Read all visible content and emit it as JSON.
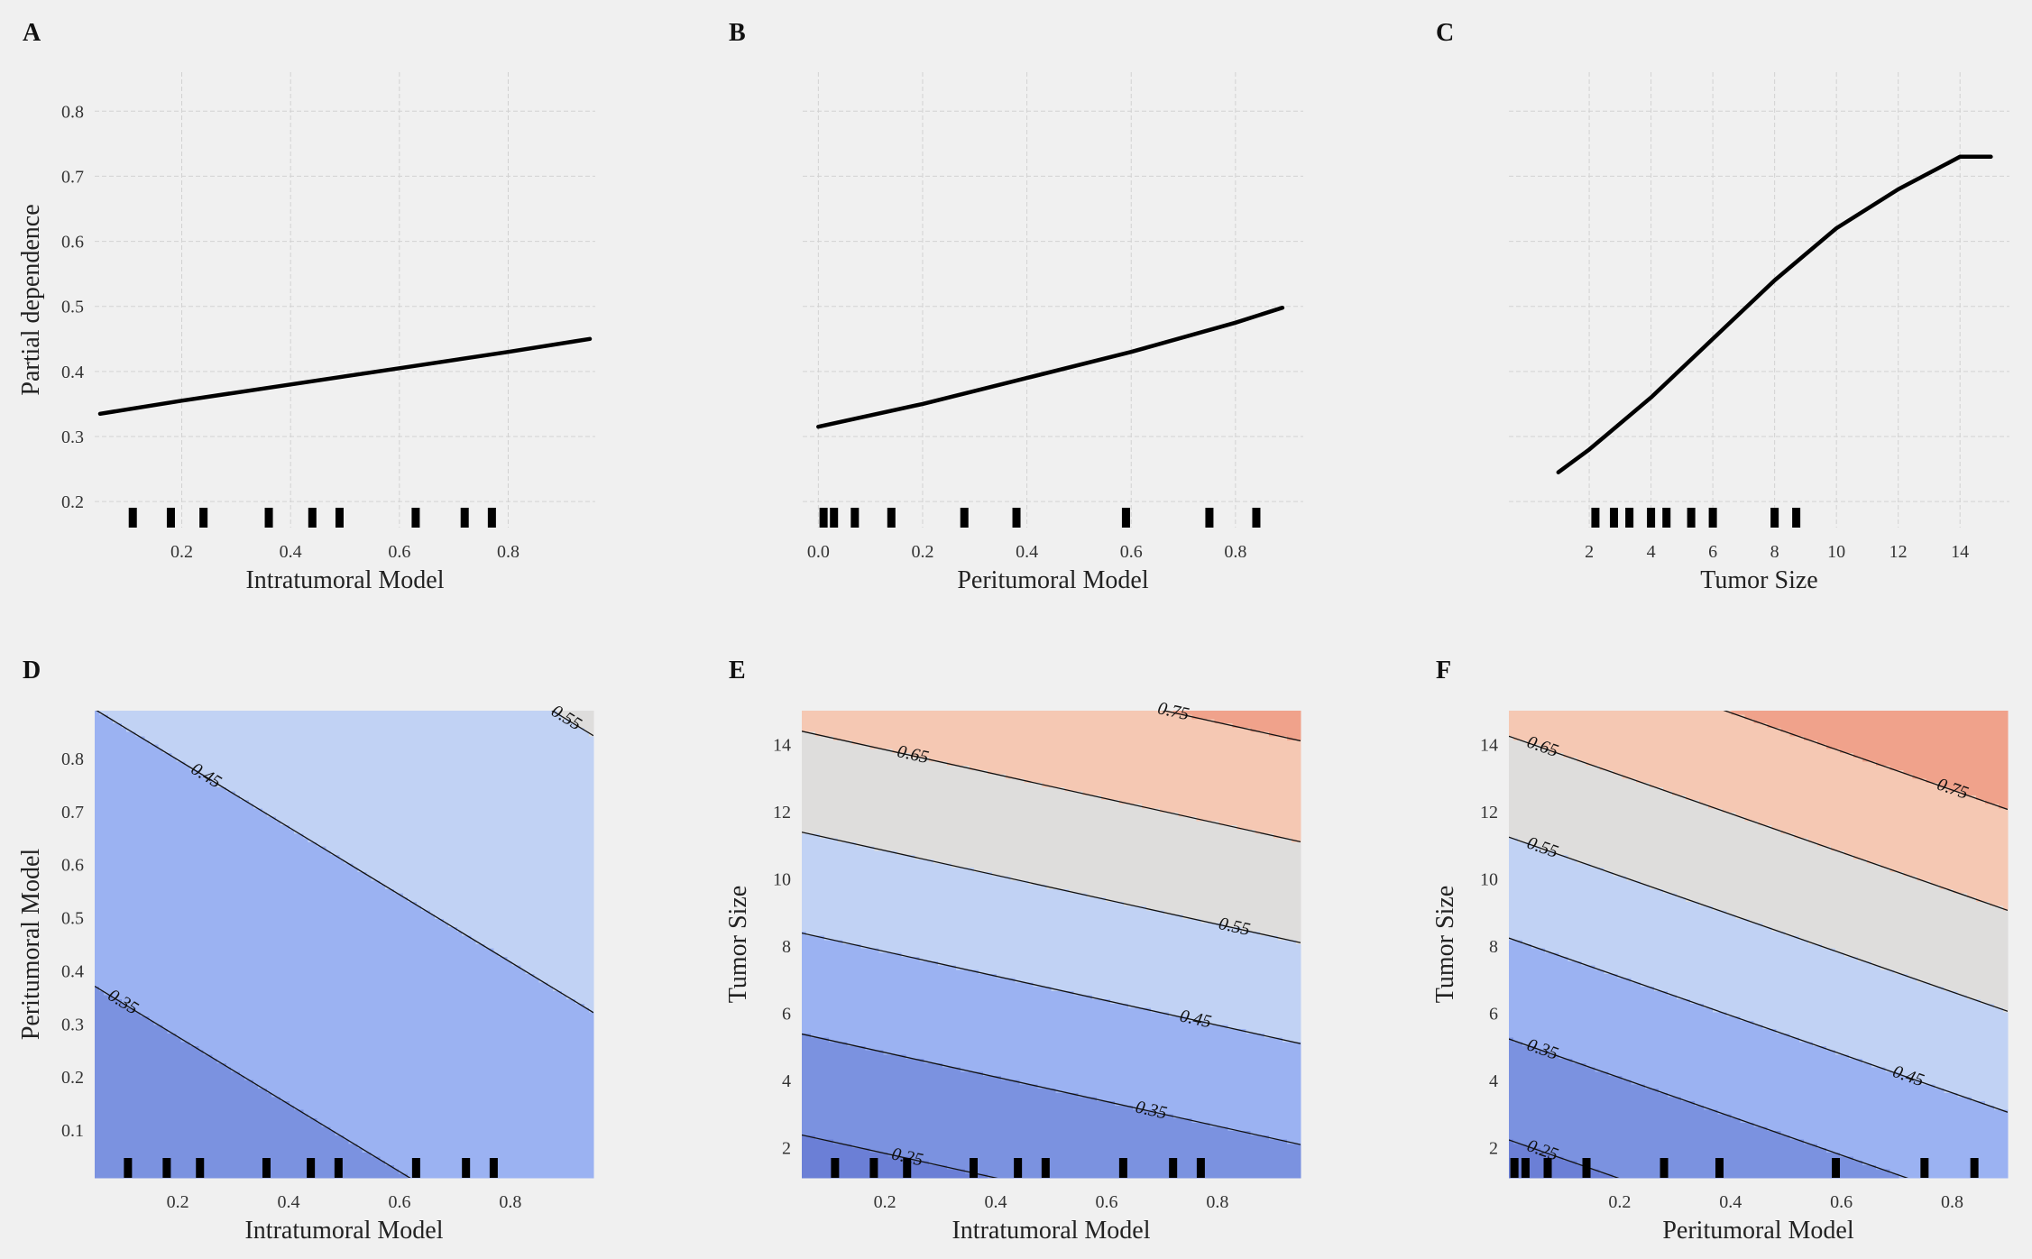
{
  "chart_data": [
    {
      "panel": "A",
      "type": "line",
      "xlabel": "Intratumoral Model",
      "ylabel": "Partial dependence",
      "xlim": [
        0.04,
        0.96
      ],
      "ylim": [
        0.16,
        0.86
      ],
      "xticks": [
        0.2,
        0.4,
        0.6,
        0.8
      ],
      "xtick_labels": [
        "0.2",
        "0.4",
        "0.6",
        "0.8"
      ],
      "yticks": [
        0.2,
        0.3,
        0.4,
        0.5,
        0.6,
        0.7,
        0.8
      ],
      "ytick_labels": [
        "0.2",
        "0.3",
        "0.4",
        "0.5",
        "0.6",
        "0.7",
        "0.8"
      ],
      "x": [
        0.05,
        0.2,
        0.4,
        0.6,
        0.8,
        0.95
      ],
      "y": [
        0.335,
        0.355,
        0.38,
        0.405,
        0.43,
        0.45
      ],
      "rug": [
        0.11,
        0.18,
        0.24,
        0.36,
        0.44,
        0.49,
        0.63,
        0.72,
        0.77
      ],
      "grid": true
    },
    {
      "panel": "B",
      "type": "line",
      "xlabel": "Peritumoral Model",
      "ylabel": "",
      "xlim": [
        -0.03,
        0.93
      ],
      "ylim": [
        0.16,
        0.86
      ],
      "xticks": [
        0.0,
        0.2,
        0.4,
        0.6,
        0.8
      ],
      "xtick_labels": [
        "0.0",
        "0.2",
        "0.4",
        "0.6",
        "0.8"
      ],
      "yticks": [
        0.2,
        0.3,
        0.4,
        0.5,
        0.6,
        0.7,
        0.8
      ],
      "x": [
        0.0,
        0.2,
        0.4,
        0.6,
        0.8,
        0.89
      ],
      "y": [
        0.315,
        0.35,
        0.39,
        0.43,
        0.475,
        0.498
      ],
      "rug": [
        0.01,
        0.03,
        0.07,
        0.14,
        0.28,
        0.38,
        0.59,
        0.75,
        0.84
      ],
      "grid": true
    },
    {
      "panel": "C",
      "type": "line",
      "xlabel": "Tumor Size",
      "ylabel": "",
      "xlim": [
        -0.6,
        15.6
      ],
      "ylim": [
        0.16,
        0.86
      ],
      "xticks": [
        2,
        4,
        6,
        8,
        10,
        12,
        14
      ],
      "xtick_labels": [
        "2",
        "4",
        "6",
        "8",
        "10",
        "12",
        "14"
      ],
      "yticks": [
        0.2,
        0.3,
        0.4,
        0.5,
        0.6,
        0.7,
        0.8
      ],
      "x": [
        1,
        2,
        4,
        6,
        8,
        10,
        12,
        14,
        15
      ],
      "y": [
        0.245,
        0.28,
        0.36,
        0.45,
        0.54,
        0.62,
        0.68,
        0.73,
        0.73
      ],
      "rug": [
        2.2,
        2.8,
        3.3,
        4.0,
        4.5,
        5.3,
        6.0,
        8.0,
        8.7
      ],
      "grid": true
    },
    {
      "panel": "D",
      "type": "contour",
      "xlabel": "Intratumoral Model",
      "ylabel": "Peritumoral Model",
      "xlim": [
        0.05,
        0.95
      ],
      "ylim": [
        0.01,
        0.89
      ],
      "xticks": [
        0.2,
        0.4,
        0.6,
        0.8
      ],
      "xtick_labels": [
        "0.2",
        "0.4",
        "0.6",
        "0.8"
      ],
      "yticks": [
        0.1,
        0.2,
        0.3,
        0.4,
        0.5,
        0.6,
        0.7,
        0.8
      ],
      "ytick_labels": [
        "0.1",
        "0.2",
        "0.3",
        "0.4",
        "0.5",
        "0.6",
        "0.7",
        "0.8"
      ],
      "contour_levels": [
        0.35,
        0.45,
        0.55
      ],
      "contour_labels": [
        "0.35",
        "0.45",
        "0.55"
      ],
      "level_label_positions": [
        [
          0.1,
          0.38
        ],
        [
          0.25,
          0.79
        ],
        [
          0.9,
          0.85
        ]
      ],
      "surface": {
        "z0": 0.2728,
        "ax": 0.1217,
        "ay": 0.1917
      },
      "fill_levels": [
        0.15,
        0.25,
        0.35,
        0.45,
        0.55,
        0.65,
        0.75,
        0.85
      ],
      "fill_colors": [
        "#6b7fd6",
        "#7b92e0",
        "#9bb2f2",
        "#c1d2f4",
        "#dedddc",
        "#f5c8b3",
        "#f0a28b",
        "#d9625d"
      ],
      "rug": [
        0.11,
        0.18,
        0.24,
        0.36,
        0.44,
        0.49,
        0.63,
        0.72,
        0.77
      ]
    },
    {
      "panel": "E",
      "type": "contour",
      "xlabel": "Intratumoral Model",
      "ylabel": "Tumor Size",
      "xlim": [
        0.05,
        0.95
      ],
      "ylim": [
        1.1,
        15.0
      ],
      "xticks": [
        0.2,
        0.4,
        0.6,
        0.8
      ],
      "xtick_labels": [
        "0.2",
        "0.4",
        "0.6",
        "0.8"
      ],
      "yticks": [
        2,
        4,
        6,
        8,
        10,
        12,
        14
      ],
      "ytick_labels": [
        "2",
        "4",
        "6",
        "8",
        "10",
        "12",
        "14"
      ],
      "contour_levels": [
        0.25,
        0.35,
        0.45,
        0.55,
        0.65,
        0.75
      ],
      "contour_labels": [
        "0.25",
        "0.35",
        "0.45",
        "0.55",
        "0.65",
        "0.75"
      ],
      "level_label_positions": [
        [
          0.24,
          2.1
        ],
        [
          0.68,
          3.5
        ],
        [
          0.76,
          5.1
        ],
        [
          0.83,
          7.5
        ],
        [
          0.25,
          13.6
        ],
        [
          0.72,
          14.8
        ]
      ],
      "surface": {
        "z0": 0.1648,
        "ax": 0.1217,
        "ay": 0.0333
      },
      "fill_levels": [
        0.15,
        0.25,
        0.35,
        0.45,
        0.55,
        0.65,
        0.75,
        0.85
      ],
      "fill_colors": [
        "#6b7fd6",
        "#7b92e0",
        "#9bb2f2",
        "#c1d2f4",
        "#dedddc",
        "#f5c8b3",
        "#f0a28b",
        "#d9625d"
      ],
      "rug": [
        0.11,
        0.18,
        0.24,
        0.36,
        0.44,
        0.49,
        0.63,
        0.72,
        0.77
      ]
    },
    {
      "panel": "F",
      "type": "contour",
      "xlabel": "Peritumoral Model",
      "ylabel": "Tumor Size",
      "xlim": [
        0.0,
        0.9
      ],
      "ylim": [
        1.1,
        15.0
      ],
      "xticks": [
        0.2,
        0.4,
        0.6,
        0.8
      ],
      "xtick_labels": [
        "0.2",
        "0.4",
        "0.6",
        "0.8"
      ],
      "yticks": [
        2,
        4,
        6,
        8,
        10,
        12,
        14
      ],
      "ytick_labels": [
        "2",
        "4",
        "6",
        "8",
        "10",
        "12",
        "14"
      ],
      "contour_levels": [
        0.25,
        0.35,
        0.45,
        0.55,
        0.65,
        0.75
      ],
      "contour_labels": [
        "0.25",
        "0.35",
        "0.45",
        "0.55",
        "0.65",
        "0.75"
      ],
      "level_label_positions": [
        [
          0.06,
          2.5
        ],
        [
          0.06,
          5.8
        ],
        [
          0.72,
          4.7
        ],
        [
          0.06,
          12.2
        ],
        [
          0.06,
          14.2
        ],
        [
          0.8,
          13.8
        ]
      ],
      "surface": {
        "z0": 0.1758,
        "ax": 0.1917,
        "ay": 0.0333
      },
      "fill_levels": [
        0.15,
        0.25,
        0.35,
        0.45,
        0.55,
        0.65,
        0.75,
        0.85
      ],
      "fill_colors": [
        "#6b7fd6",
        "#7b92e0",
        "#9bb2f2",
        "#c1d2f4",
        "#dedddc",
        "#f5c8b3",
        "#f0a28b",
        "#d9625d"
      ],
      "rug": [
        0.01,
        0.03,
        0.07,
        0.14,
        0.28,
        0.38,
        0.59,
        0.75,
        0.84
      ]
    }
  ]
}
